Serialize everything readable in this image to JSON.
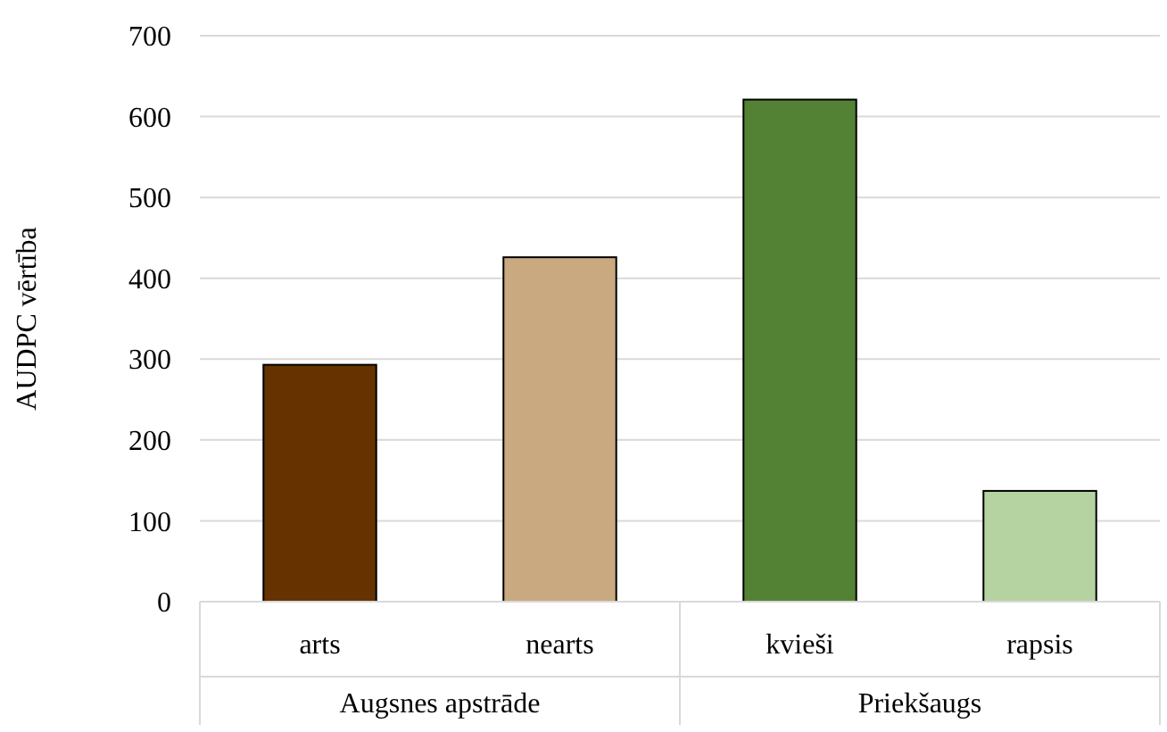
{
  "chart_data": {
    "type": "bar",
    "ylabel": "AUDPC vērtība",
    "categories": [
      "arts",
      "nearts",
      "kvieši",
      "rapsis"
    ],
    "values": [
      293,
      426,
      621,
      137
    ],
    "colors": [
      "#663300",
      "#c9a97f",
      "#548235",
      "#b5d3a0"
    ],
    "ylim": [
      0,
      700
    ],
    "yticks": [
      0,
      100,
      200,
      300,
      400,
      500,
      600,
      700
    ],
    "grid": "y",
    "annotations": [
      "Augsnes apstrāde",
      "Priekšaugs"
    ]
  }
}
